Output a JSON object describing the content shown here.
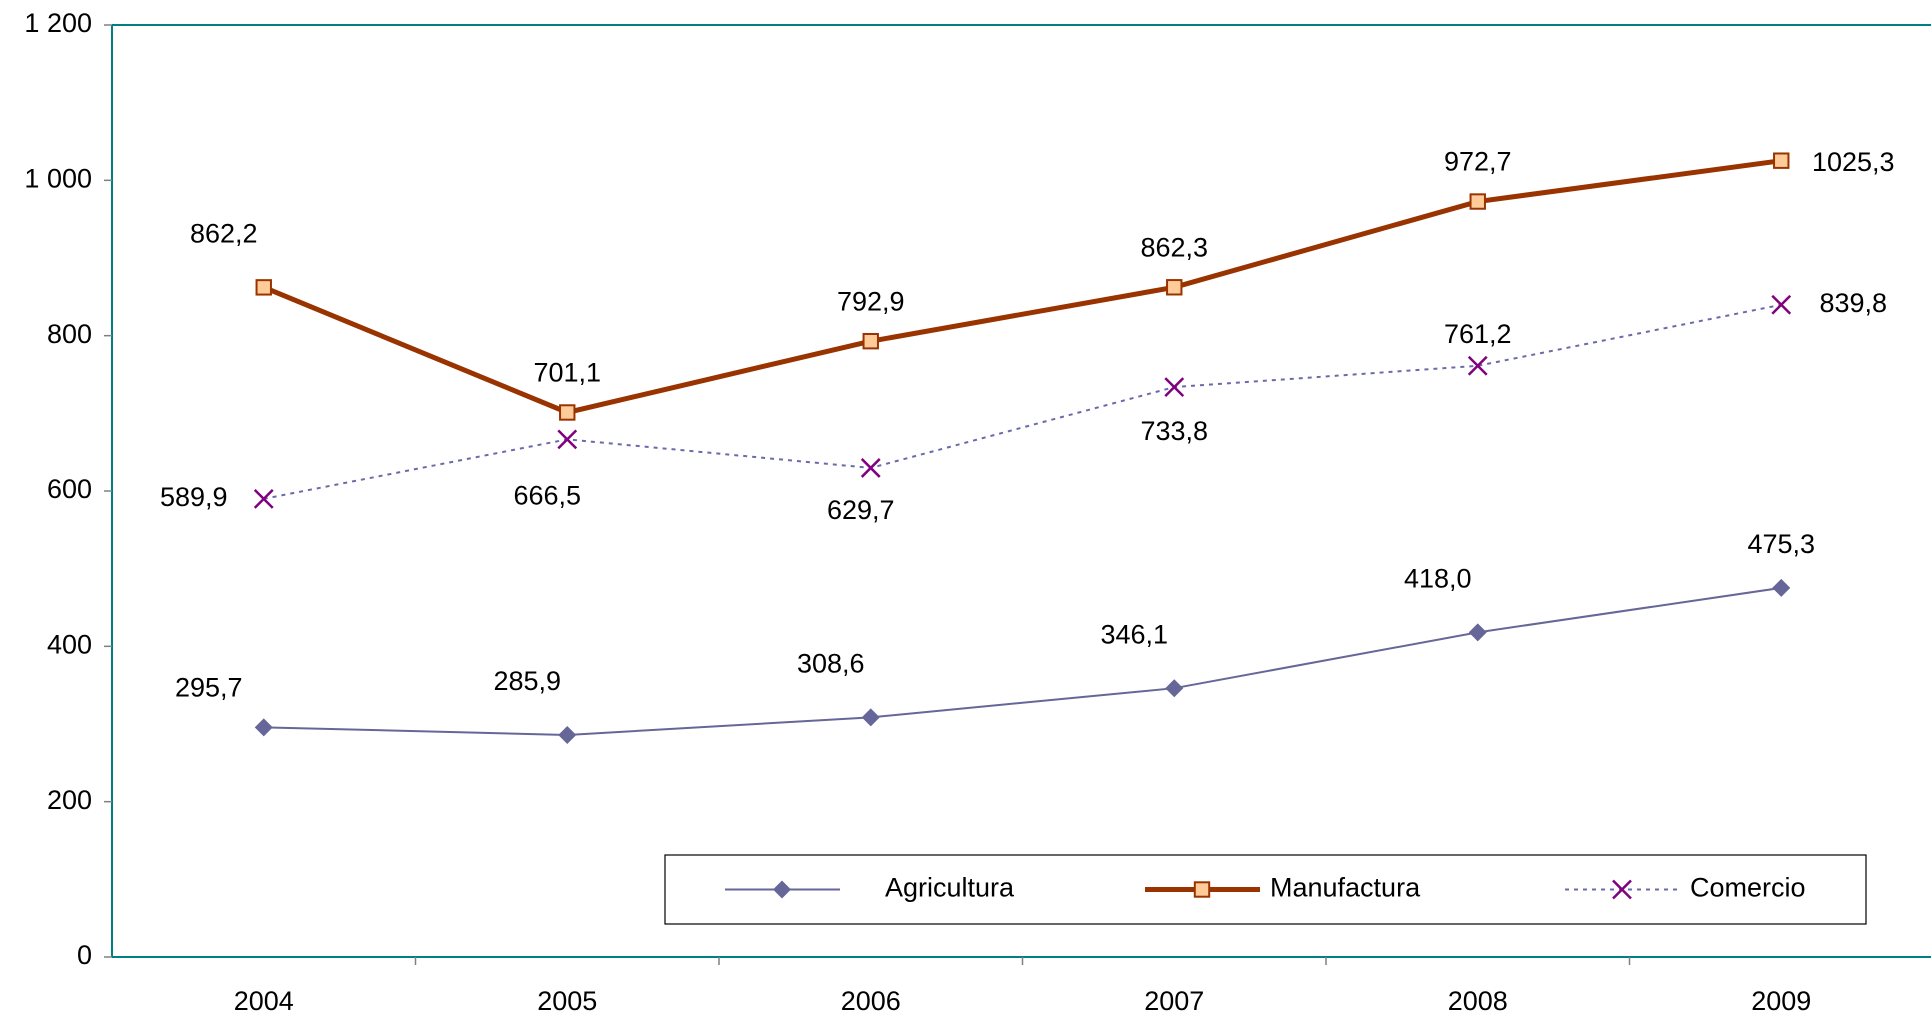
{
  "chart_data": {
    "type": "line",
    "categories": [
      "2004",
      "2005",
      "2006",
      "2007",
      "2008",
      "2009"
    ],
    "series": [
      {
        "name": "Agricultura",
        "color": "#666699",
        "marker": "diamond",
        "marker_color": "#666699",
        "line_style": "solid",
        "line_width": 2,
        "values": [
          295.7,
          285.9,
          308.6,
          346.1,
          418.0,
          475.3
        ],
        "value_labels": [
          "295,7",
          "285,9",
          "308,6",
          "346,1",
          "418,0",
          "475,3"
        ]
      },
      {
        "name": "Manufactura",
        "color": "#993300",
        "marker": "square",
        "marker_color": "#ffcc99",
        "line_style": "solid",
        "line_width": 5,
        "values": [
          862.2,
          701.1,
          792.9,
          862.3,
          972.7,
          1025.3
        ],
        "value_labels": [
          "862,2",
          "701,1",
          "792,9",
          "862,3",
          "972,7",
          "1025,3"
        ]
      },
      {
        "name": "Comercio",
        "color": "#6a6aaa",
        "marker": "x",
        "marker_color": "#800080",
        "line_style": "dotted",
        "line_width": 2,
        "values": [
          589.9,
          666.5,
          629.7,
          733.8,
          761.2,
          839.8
        ],
        "value_labels": [
          "589,9",
          "666,5",
          "629,7",
          "733,8",
          "761,2",
          "839,8"
        ]
      }
    ],
    "ylim": [
      0,
      1200
    ],
    "yticks": [
      0,
      200,
      400,
      600,
      800,
      {
        "value": 1000,
        "label": "1 000"
      },
      {
        "value": 1200,
        "label": "1 200"
      }
    ],
    "legend": "bottom-right",
    "axis_color": "#008080"
  }
}
